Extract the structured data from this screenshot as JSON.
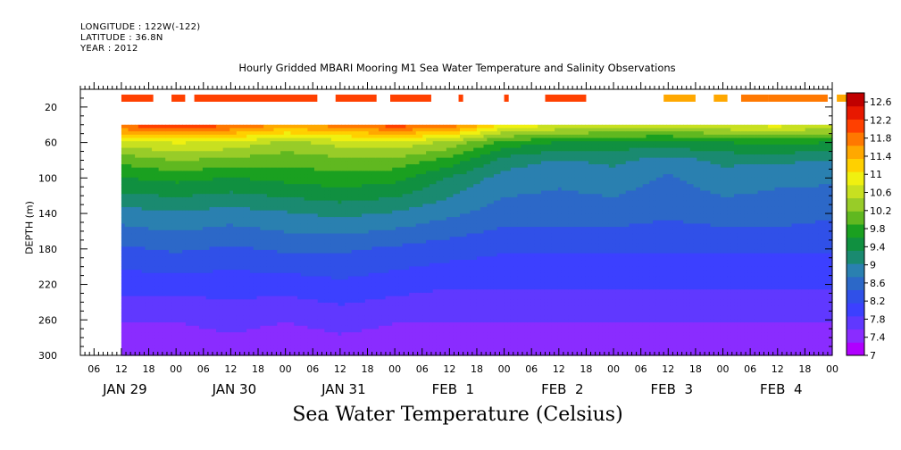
{
  "header": {
    "lines": [
      "LONGITUDE : 122W(-122)",
      "LATITUDE : 36.8N",
      "YEAR : 2012"
    ],
    "title": "Hourly Gridded MBARI Mooring M1 Sea Water Temperature and Salinity Observations",
    "y_label": "DEPTH (m)",
    "x_title": "Sea Water Temperature (Celsius)"
  },
  "colors": {
    "palette": [
      "#b000ff",
      "#8a2cff",
      "#6038ff",
      "#3c40ff",
      "#3050e8",
      "#2c68c8",
      "#2a80b0",
      "#1a8a70",
      "#109040",
      "#1aa020",
      "#60b820",
      "#98cc28",
      "#c8e020",
      "#f0f010",
      "#ffd000",
      "#ffa800",
      "#ff7800",
      "#ff4000",
      "#e81800",
      "#c00000"
    ]
  },
  "chart_data": {
    "type": "heatmap",
    "title": "Hourly Gridded MBARI Mooring M1 Sea Water Temperature and Salinity Observations",
    "xlabel": "",
    "ylabel": "DEPTH (m)",
    "colorbar_label": "Sea Water Temperature (Celsius)",
    "x_range": [
      "2012-01-29 03:00",
      "2012-02-05 00:00"
    ],
    "x_tick_labels": [
      "06",
      "12",
      "18",
      "00",
      "06",
      "12",
      "18",
      "00",
      "06",
      "12",
      "18",
      "00",
      "06",
      "12",
      "18",
      "00",
      "06",
      "12",
      "18",
      "00",
      "06",
      "12",
      "18",
      "00",
      "06",
      "12",
      "18",
      "00"
    ],
    "x_tick_times": [
      "2012-01-29 06:00",
      "2012-01-29 12:00",
      "2012-01-29 18:00",
      "2012-01-30 00:00",
      "2012-01-30 06:00",
      "2012-01-30 12:00",
      "2012-01-30 18:00",
      "2012-01-31 00:00",
      "2012-01-31 06:00",
      "2012-01-31 12:00",
      "2012-01-31 18:00",
      "2012-02-01 00:00",
      "2012-02-01 06:00",
      "2012-02-01 12:00",
      "2012-02-01 18:00",
      "2012-02-02 00:00",
      "2012-02-02 06:00",
      "2012-02-02 12:00",
      "2012-02-02 18:00",
      "2012-02-03 00:00",
      "2012-02-03 06:00",
      "2012-02-03 12:00",
      "2012-02-03 18:00",
      "2012-02-04 00:00",
      "2012-02-04 06:00",
      "2012-02-04 12:00",
      "2012-02-04 18:00",
      "2012-02-05 00:00"
    ],
    "date_labels": [
      "JAN 29",
      "JAN 30",
      "JAN 31",
      "FEB  1",
      "FEB  2",
      "FEB  3",
      "FEB  4"
    ],
    "date_label_times": [
      "2012-01-29 12:00",
      "2012-01-30 12:00",
      "2012-01-31 12:00",
      "2012-02-01 12:00",
      "2012-02-02 12:00",
      "2012-02-03 12:00",
      "2012-02-04 12:00"
    ],
    "y_range": [
      0,
      300
    ],
    "y_inverted": true,
    "y_ticks": [
      20,
      60,
      100,
      140,
      180,
      220,
      260,
      300
    ],
    "colorbar_ticks": [
      "12.6",
      "12.2",
      "11.8",
      "11.4",
      "11",
      "10.6",
      "10.2",
      "9.8",
      "9.4",
      "9",
      "8.6",
      "8.2",
      "7.8",
      "7.4",
      "7"
    ],
    "colorbar_range": [
      7.0,
      12.8
    ],
    "data_start": "2012-01-29 12:00",
    "profile_times": [
      "2012-01-29 12:00",
      "2012-01-30 00:00",
      "2012-01-30 12:00",
      "2012-01-31 00:00",
      "2012-01-31 12:00",
      "2012-02-01 00:00",
      "2012-02-01 12:00",
      "2012-02-02 00:00",
      "2012-02-02 12:00",
      "2012-02-03 00:00",
      "2012-02-03 12:00",
      "2012-02-04 00:00",
      "2012-02-04 12:00",
      "2012-02-05 00:00"
    ],
    "depths_m": [
      40,
      60,
      80,
      100,
      140,
      180,
      220,
      260,
      300
    ],
    "temperature_profiles_c": [
      [
        12.0,
        10.6,
        10.0,
        9.6,
        8.9,
        8.4,
        8.0,
        7.6,
        7.3
      ],
      [
        12.2,
        10.8,
        10.2,
        9.7,
        9.0,
        8.5,
        8.0,
        7.6,
        7.3
      ],
      [
        12.0,
        10.7,
        10.1,
        9.6,
        8.9,
        8.4,
        8.0,
        7.7,
        7.4
      ],
      [
        11.6,
        10.4,
        10.0,
        9.7,
        9.0,
        8.5,
        8.0,
        7.6,
        7.3
      ],
      [
        11.8,
        10.6,
        10.1,
        9.8,
        9.1,
        8.5,
        8.1,
        7.7,
        7.4
      ],
      [
        12.1,
        10.7,
        10.1,
        9.7,
        9.0,
        8.4,
        8.0,
        7.6,
        7.4
      ],
      [
        11.9,
        10.4,
        9.8,
        9.3,
        8.8,
        8.3,
        7.9,
        7.6,
        7.4
      ],
      [
        11.0,
        9.8,
        9.2,
        8.9,
        8.6,
        8.2,
        7.9,
        7.6,
        7.3
      ],
      [
        10.8,
        9.6,
        9.0,
        8.8,
        8.6,
        8.2,
        7.9,
        7.6,
        7.3
      ],
      [
        10.7,
        9.5,
        9.1,
        8.9,
        8.6,
        8.2,
        7.9,
        7.6,
        7.4
      ],
      [
        10.6,
        9.5,
        8.9,
        8.7,
        8.5,
        8.2,
        7.9,
        7.6,
        7.3
      ],
      [
        10.8,
        9.6,
        9.1,
        8.9,
        8.6,
        8.2,
        7.9,
        7.6,
        7.4
      ],
      [
        10.9,
        9.7,
        9.1,
        8.8,
        8.6,
        8.2,
        7.9,
        7.6,
        7.3
      ],
      [
        10.7,
        9.6,
        9.0,
        8.8,
        8.5,
        8.2,
        7.9,
        7.6,
        7.3
      ]
    ],
    "surface_depth_m": 10,
    "surface_segments": [
      {
        "start": "2012-01-29 12:00",
        "end": "2012-01-29 19:00",
        "temp_c": 12.1
      },
      {
        "start": "2012-01-29 23:00",
        "end": "2012-01-30 02:00",
        "temp_c": 12.1
      },
      {
        "start": "2012-01-30 04:00",
        "end": "2012-01-31 07:00",
        "temp_c": 12.2
      },
      {
        "start": "2012-01-31 11:00",
        "end": "2012-01-31 20:00",
        "temp_c": 12.1
      },
      {
        "start": "2012-01-31 23:00",
        "end": "2012-02-01 08:00",
        "temp_c": 12.2
      },
      {
        "start": "2012-02-01 14:00",
        "end": "2012-02-01 15:00",
        "temp_c": 12.1
      },
      {
        "start": "2012-02-01 24:00",
        "end": "2012-02-02 01:00",
        "temp_c": 12.1
      },
      {
        "start": "2012-02-02 09:00",
        "end": "2012-02-02 18:00",
        "temp_c": 12.0
      },
      {
        "start": "2012-02-03 11:00",
        "end": "2012-02-03 18:00",
        "temp_c": 11.5
      },
      {
        "start": "2012-02-03 22:00",
        "end": "2012-02-04 01:00",
        "temp_c": 11.6
      },
      {
        "start": "2012-02-04 04:00",
        "end": "2012-02-04 10:00",
        "temp_c": 11.7
      },
      {
        "start": "2012-02-04 10:00",
        "end": "2012-02-04 23:00",
        "temp_c": 11.9
      },
      {
        "start": "2012-02-05 01:00",
        "end": "2012-02-05 04:00",
        "temp_c": 11.5
      }
    ]
  }
}
